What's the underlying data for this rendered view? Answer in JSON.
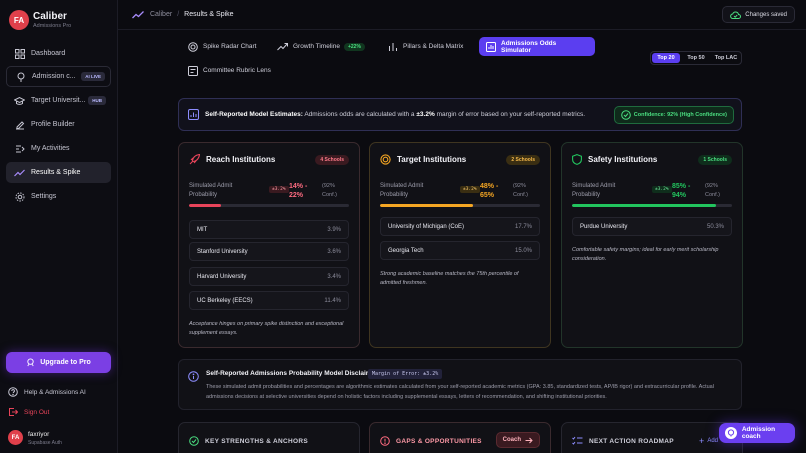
{
  "app": {
    "avatar": "FA",
    "name": "Caliber",
    "subtitle": "Admissions Pro"
  },
  "nav": [
    {
      "label": "Dashboard",
      "icon": "grid-icon"
    },
    {
      "label": "Admission c...",
      "icon": "map-pin-icon",
      "pill": "AI LIVE"
    },
    {
      "label": "Target Universit...",
      "icon": "graduation-cap-icon",
      "pill": "HUB"
    },
    {
      "label": "Profile Builder",
      "icon": "edit-icon"
    },
    {
      "label": "My Activities",
      "icon": "activity-icon"
    },
    {
      "label": "Results & Spike",
      "icon": "trend-icon",
      "active": true
    },
    {
      "label": "Settings",
      "icon": "gear-icon"
    }
  ],
  "upgrade_label": "Upgrade to Pro",
  "help_label": "Help & Admissions AI",
  "signout_label": "Sign Out",
  "user": {
    "avatar": "FA",
    "name": "faxriyor",
    "sub": "Supabase Auth"
  },
  "breadcrumb": {
    "root": "Caliber",
    "sep": "/",
    "current": "Results & Spike"
  },
  "saved_label": "Changes saved",
  "tabs": [
    {
      "label": "Spike Radar Chart",
      "icon": "radar-icon"
    },
    {
      "label": "Growth Timeline",
      "icon": "trend-up-icon",
      "badge": "+22%"
    },
    {
      "label": "Pillars & Delta Matrix",
      "icon": "bars-icon"
    },
    {
      "label": "Admissions Odds Simulator",
      "icon": "simulator-icon",
      "active": true
    },
    {
      "label": "Committee Rubric Lens",
      "icon": "rubric-icon"
    }
  ],
  "segment": {
    "options": [
      "Top 20",
      "Top 50",
      "Top LAC"
    ],
    "selected": "Top 20"
  },
  "info": {
    "title": "Self-Reported Model Estimates:",
    "pre": "Admissions odds are calculated with a",
    "margin": "±3.2%",
    "post": "margin of error based on your self-reported metrics.",
    "confidence": "Confidence: 92% (High Confidence)"
  },
  "cards": {
    "reach": {
      "title": "Reach Institutions",
      "count": "4 Schools",
      "sim_label": "Simulated Admit Probability",
      "tag": "±3.2%",
      "range": "14% - 22%",
      "conf": "(92% Conf.)",
      "fill_pct": 20,
      "color": "#e8445a",
      "schools": [
        [
          "MIT",
          "3.9%"
        ],
        [
          "Stanford University",
          "3.6%"
        ],
        [
          "Harvard University",
          "3.4%"
        ],
        [
          "UC Berkeley (EECS)",
          "11.4%"
        ]
      ],
      "note": "Acceptance hinges on primary spike distinction and exceptional supplement essays."
    },
    "target": {
      "title": "Target Institutions",
      "count": "2 Schools",
      "sim_label": "Simulated Admit Probability",
      "tag": "±3.2%",
      "range": "48% - 65%",
      "conf": "(92% Conf.)",
      "fill_pct": 58,
      "color": "#f5a623",
      "schools": [
        [
          "University of Michigan (CoE)",
          "17.7%"
        ],
        [
          "Georgia Tech",
          "15.0%"
        ]
      ],
      "note": "Strong academic baseline matches the 75th percentile of admitted freshmen."
    },
    "safety": {
      "title": "Safety Institutions",
      "count": "1 Schools",
      "sim_label": "Simulated Admit Probability",
      "tag": "±3.2%",
      "range": "85% - 94%",
      "conf": "(92% Conf.)",
      "fill_pct": 90,
      "color": "#22c55e",
      "schools": [
        [
          "Purdue University",
          "50.3%"
        ]
      ],
      "note": "Comfortable safety margins; ideal for early merit scholarship consideration."
    }
  },
  "disclaimer": {
    "title": "Self-Reported Admissions Probability Model Disclaimer",
    "tag": "Margin of Error: ±3.2%",
    "body": "These simulated admit probabilities and percentages are algorithmic estimates calculated from your self-reported academic metrics (GPA: 3.85, standardized tests, AP/IB rigor) and extracurricular profile. Actual admissions decisions at selective universities depend on holistic factors including supplemental essays, letters of recommendation, and shifting institutional priorities."
  },
  "bottom": {
    "strengths": "KEY STRENGTHS & ANCHORS",
    "gaps": "GAPS & OPPORTUNITIES",
    "coach": "Coach",
    "roadmap": "NEXT ACTION ROADMAP",
    "add": "Add"
  },
  "fab_label": "Admission coach",
  "colors": {
    "accent": "#5b3ef0",
    "reach": "#e8445a",
    "target": "#f5a623",
    "safety": "#22c55e"
  }
}
